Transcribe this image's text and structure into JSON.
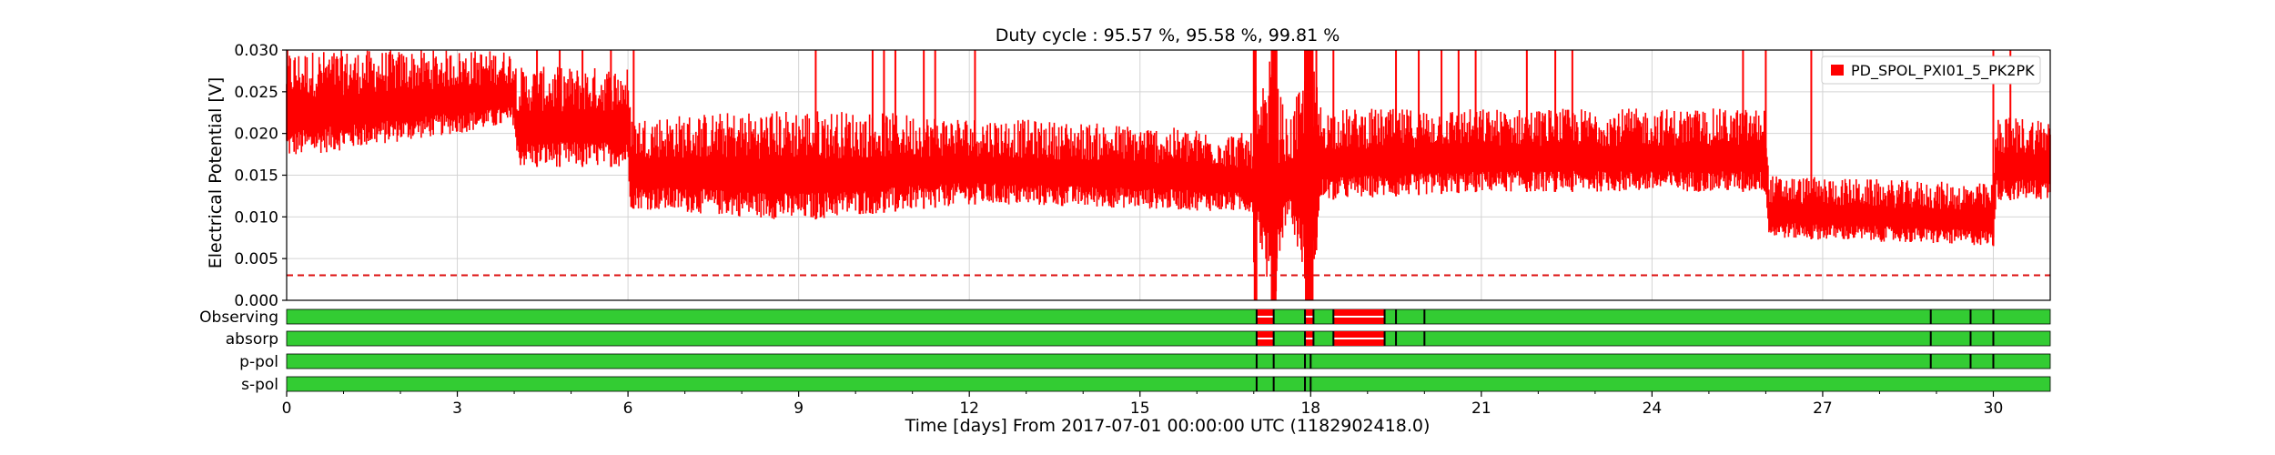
{
  "chart_data": {
    "type": "line",
    "title": "Duty cycle : 95.57 %, 95.58 %, 99.81 %",
    "xlabel": "Time [days] From 2017-07-01 00:00:00 UTC (1182902418.0)",
    "ylabel": "Electrical Potential [V]",
    "xlim": [
      0,
      31
    ],
    "ylim": [
      0,
      0.03
    ],
    "x_ticks": [
      "0",
      "3",
      "6",
      "9",
      "12",
      "15",
      "18",
      "21",
      "24",
      "27",
      "30"
    ],
    "y_ticks": [
      "0.000",
      "0.005",
      "0.010",
      "0.015",
      "0.020",
      "0.025",
      "0.030"
    ],
    "grid": true,
    "legend": {
      "placement": "top-right",
      "entries": [
        "PD_SPOL_PXI01_5_PK2PK"
      ]
    },
    "colors": {
      "series": "#ff0000",
      "threshold": "#dd1111",
      "state_on": "#33cc33",
      "state_off": "#ff0000",
      "state_edge": "#000000"
    },
    "series": [
      {
        "name": "PD_SPOL_PXI01_5_PK2PK",
        "envelope_days": [
          0,
          2,
          4,
          4.05,
          6,
          6.05,
          9,
          12,
          15,
          17,
          17.3,
          17.6,
          18,
          18.2,
          21,
          26,
          26.05,
          30,
          30.05,
          31
        ],
        "lower": [
          0.017,
          0.019,
          0.021,
          0.016,
          0.016,
          0.011,
          0.0095,
          0.0115,
          0.011,
          0.0105,
          0.0,
          0.0105,
          0.0,
          0.012,
          0.013,
          0.013,
          0.0075,
          0.0065,
          0.012,
          0.012
        ],
        "upper": [
          0.03,
          0.03,
          0.03,
          0.028,
          0.028,
          0.022,
          0.023,
          0.022,
          0.021,
          0.02,
          0.03,
          0.021,
          0.03,
          0.023,
          0.023,
          0.023,
          0.015,
          0.014,
          0.022,
          0.022
        ],
        "spikes_to_top_days": [
          4.4,
          4.8,
          5.2,
          5.7,
          6.1,
          9.3,
          10.3,
          10.5,
          10.7,
          11.2,
          11.4,
          12.1,
          17.0,
          17.4,
          17.9,
          18.1,
          18.4,
          19.5,
          19.9,
          20.3,
          20.6,
          20.9,
          21.8,
          22.3,
          22.6,
          25.6,
          26.0,
          26.8,
          30.0,
          30.3
        ],
        "dropouts_days": [
          [
            17.0,
            17.05
          ],
          [
            17.3,
            17.4
          ],
          [
            17.9,
            18.05
          ]
        ]
      }
    ],
    "threshold": {
      "value": 0.003,
      "style": "dashed"
    },
    "state_segments": [
      {
        "label": "Observing",
        "off_intervals": [
          [
            17.05,
            17.35
          ],
          [
            17.9,
            18.05
          ],
          [
            18.4,
            19.3
          ]
        ],
        "edge_marks": [
          17.05,
          17.35,
          17.9,
          18.05,
          18.4,
          19.3,
          19.5,
          20.0,
          28.9,
          29.6,
          30.0
        ]
      },
      {
        "label": "absorp",
        "off_intervals": [
          [
            17.05,
            17.35
          ],
          [
            17.9,
            18.05
          ],
          [
            18.4,
            19.3
          ]
        ],
        "edge_marks": [
          17.05,
          17.35,
          17.9,
          18.05,
          18.4,
          19.3,
          19.5,
          20.0,
          28.9,
          29.6,
          30.0
        ]
      },
      {
        "label": "p-pol",
        "off_intervals": [],
        "edge_marks": [
          17.05,
          17.35,
          17.9,
          18.0,
          28.9,
          29.6,
          30.0
        ]
      },
      {
        "label": "s-pol",
        "off_intervals": [],
        "edge_marks": [
          17.05,
          17.35,
          17.9,
          18.0
        ]
      }
    ]
  }
}
